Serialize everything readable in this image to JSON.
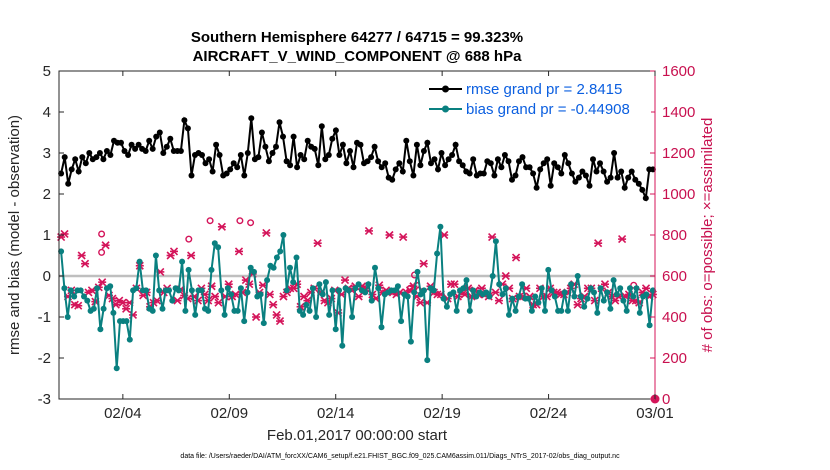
{
  "chart_data": {
    "type": "line",
    "title_line1": "Southern Hemisphere 64277 / 64715 = 99.323%",
    "title_line2": "AIRCRAFT_V_WIND_COMPONENT @ 688 hPa",
    "xlabel": "Feb.01,2017 00:00:00 start",
    "ylabel_left": "rmse and bias (model - observation)",
    "ylabel_right": "# of obs: o=possible; ×=assimilated",
    "footer": "data file: /Users/raeder/DAI/ATM_forcXX/CAM6_setup/f.e21.FHIST_BGC.f09_025.CAM6assim.011/Diags_NTrS_2017-02/obs_diag_output.nc",
    "x_ticks": [
      "02/04",
      "02/09",
      "02/14",
      "02/19",
      "02/24",
      "03/01"
    ],
    "y_left_ticks": [
      "-3",
      "-2",
      "-1",
      "0",
      "1",
      "2",
      "3",
      "4",
      "5"
    ],
    "y_right_ticks": [
      "0",
      "200",
      "400",
      "600",
      "800",
      "1000",
      "1200",
      "1400",
      "1600"
    ],
    "ylim_left": [
      -3,
      5
    ],
    "ylim_right": [
      0,
      1600
    ],
    "xlim_days": [
      0.5,
      28.5
    ],
    "legend": {
      "rmse": "rmse grand pr = 2.8415",
      "bias": "bias grand pr = -0.44908"
    },
    "colors": {
      "rmse": "#000000",
      "bias": "#0a8080",
      "obs": "#d4145a",
      "zero": "#bfbfbf"
    },
    "series": [
      {
        "name": "rmse",
        "values": [
          2.5,
          2.9,
          2.25,
          2.6,
          2.85,
          2.55,
          2.9,
          2.75,
          3.0,
          2.85,
          2.9,
          3.0,
          2.85,
          3.05,
          2.95,
          3.3,
          3.25,
          3.25,
          3.05,
          2.95,
          3.2,
          3.1,
          3.2,
          3.1,
          3.05,
          3.3,
          3.1,
          3.4,
          3.5,
          3.0,
          3.15,
          3.35,
          3.05,
          3.05,
          3.05,
          3.8,
          3.6,
          2.45,
          2.95,
          3.0,
          2.95,
          2.75,
          2.85,
          2.55,
          3.2,
          2.95,
          2.45,
          2.5,
          2.6,
          2.75,
          2.65,
          2.95,
          2.45,
          3.0,
          3.85,
          2.85,
          2.9,
          3.5,
          3.15,
          2.8,
          3.0,
          3.15,
          3.75,
          3.4,
          2.8,
          2.7,
          3.4,
          2.65,
          2.95,
          2.85,
          3.3,
          3.15,
          3.1,
          2.7,
          3.65,
          2.85,
          2.95,
          3.35,
          3.55,
          2.95,
          3.2,
          2.75,
          3.05,
          2.65,
          3.25,
          3.2,
          2.75,
          2.8,
          2.9,
          3.15,
          2.8,
          2.65,
          2.75,
          2.4,
          2.35,
          2.6,
          2.75,
          2.55,
          3.3,
          2.8,
          2.45,
          3.2,
          2.7,
          3.05,
          3.25,
          2.75,
          2.85,
          2.6,
          3.0,
          2.7,
          2.85,
          2.95,
          3.2,
          2.8,
          2.7,
          2.55,
          2.5,
          2.85,
          2.45,
          2.5,
          2.5,
          2.8,
          2.75,
          2.45,
          2.85,
          2.65,
          2.95,
          2.8,
          2.35,
          2.45,
          2.8,
          2.9,
          2.65,
          2.65,
          2.5,
          2.15,
          2.6,
          2.75,
          2.85,
          2.2,
          2.75,
          2.65,
          2.5,
          2.95,
          2.75,
          2.5,
          2.3,
          2.4,
          2.55,
          2.45,
          2.2,
          2.85,
          2.55,
          2.75,
          2.55,
          2.3,
          2.4,
          3.0,
          2.4,
          2.55,
          2.15,
          2.4,
          2.55,
          2.35,
          2.25,
          2.1,
          1.9,
          2.6,
          2.6
        ]
      },
      {
        "name": "bias",
        "values": [
          0.6,
          -0.3,
          -1.0,
          -0.35,
          -0.5,
          -0.35,
          -0.35,
          -0.5,
          -0.6,
          -0.85,
          -0.8,
          -0.3,
          -1.3,
          -0.8,
          -0.3,
          -0.25,
          -0.9,
          -2.25,
          -1.1,
          -1.1,
          -1.1,
          -1.55,
          -0.35,
          -0.3,
          0.35,
          -0.35,
          -0.35,
          -0.8,
          -0.85,
          0.5,
          -0.35,
          -0.8,
          -0.35,
          -0.35,
          -0.6,
          -0.3,
          -0.35,
          0.35,
          -0.85,
          0.15,
          -0.35,
          -0.95,
          -0.35,
          -0.35,
          -0.8,
          -0.85,
          0.15,
          0.8,
          0.7,
          -0.35,
          -0.95,
          -0.3,
          -0.45,
          -0.85,
          -0.85,
          -0.3,
          -1.1,
          -0.4,
          0.2,
          0.1,
          -0.5,
          -0.45,
          -1.15,
          -0.1,
          0.25,
          0.2,
          0.45,
          0.6,
          1.0,
          -0.35,
          0.2,
          -0.15,
          0.45,
          -0.85,
          -0.95,
          -0.7,
          -0.85,
          -0.3,
          -1.0,
          -0.2,
          -0.45,
          -0.15,
          -0.95,
          -0.35,
          -1.3,
          -0.35,
          -1.7,
          -0.3,
          -0.35,
          -1.0,
          -0.3,
          -0.2,
          -0.35,
          -0.4,
          -0.2,
          -0.6,
          0.2,
          -0.3,
          -1.25,
          -0.45,
          -0.4,
          -0.35,
          -0.35,
          -0.25,
          -1.1,
          -0.45,
          -0.5,
          -1.6,
          -0.4,
          0.1,
          -0.45,
          -0.35,
          -2.05,
          -0.3,
          -0.35,
          0.55,
          1.2,
          -0.55,
          -0.75,
          -0.45,
          -0.4,
          -0.85,
          -0.35,
          -0.3,
          -0.1,
          -0.85,
          -0.35,
          -0.5,
          -0.4,
          -0.45,
          -0.4,
          -0.5,
          0.0,
          0.85,
          -0.2,
          -0.45,
          -0.3,
          -0.95,
          -0.55,
          -0.85,
          -0.5,
          -0.2,
          -0.55,
          -0.55,
          -0.85,
          -0.5,
          -0.65,
          -0.3,
          -0.85,
          0.15,
          -0.35,
          -0.5,
          -0.85,
          -0.85,
          -0.4,
          -0.85,
          -0.2,
          -0.5,
          0.0,
          -0.5,
          -0.75,
          -0.55,
          -0.3,
          -0.4,
          -0.9,
          -0.3,
          -0.6,
          -0.4,
          -0.8,
          -0.1,
          -0.45,
          -0.3,
          -0.6,
          -0.85,
          -0.3,
          -0.5,
          -0.3,
          -0.9,
          -0.5,
          -0.45,
          -1.2,
          -0.35
        ]
      },
      {
        "name": "obs_assimilated",
        "values": [
          790,
          805,
          500,
          530,
          460,
          455,
          700,
          660,
          520,
          530,
          475,
          545,
          570,
          750,
          505,
          490,
          460,
          480,
          470,
          440,
          470,
          410,
          540,
          650,
          505,
          520,
          450,
          470,
          480,
          620,
          520,
          540,
          700,
          720,
          480,
          535,
          505,
          490,
          700,
          500,
          480,
          540,
          510,
          480,
          550,
          500,
          470,
          840,
          500,
          560,
          500,
          510,
          720,
          520,
          580,
          560,
          610,
          400,
          520,
          555,
          810,
          510,
          460,
          410,
          380,
          500,
          520,
          540,
          540,
          560,
          450,
          500,
          480,
          520,
          540,
          760,
          520,
          480,
          470,
          490,
          530,
          420,
          510,
          580,
          540,
          530,
          550,
          500,
          550,
          540,
          820,
          510,
          490,
          555,
          520,
          530,
          800,
          520,
          510,
          520,
          790,
          520,
          530,
          550,
          500,
          470,
          660,
          470,
          550,
          520,
          510,
          510,
          800,
          490,
          560,
          560,
          500,
          520,
          510,
          540,
          500,
          530,
          510,
          540,
          510,
          500,
          790,
          520,
          480,
          560,
          600,
          540,
          490,
          690,
          500,
          500,
          540,
          500,
          460,
          460,
          540,
          500,
          500,
          540,
          520,
          520,
          510,
          510,
          520,
          540,
          560,
          460,
          490,
          500,
          540,
          540,
          480,
          760,
          540,
          560,
          520,
          500,
          480,
          500,
          780,
          500,
          510,
          480,
          480,
          470,
          520,
          540,
          500,
          510
        ]
      },
      {
        "name": "obs_possible",
        "values": [
          805,
          715,
          870,
          870,
          860,
          605,
          555,
          530,
          540,
          780,
          555
        ]
      }
    ]
  }
}
